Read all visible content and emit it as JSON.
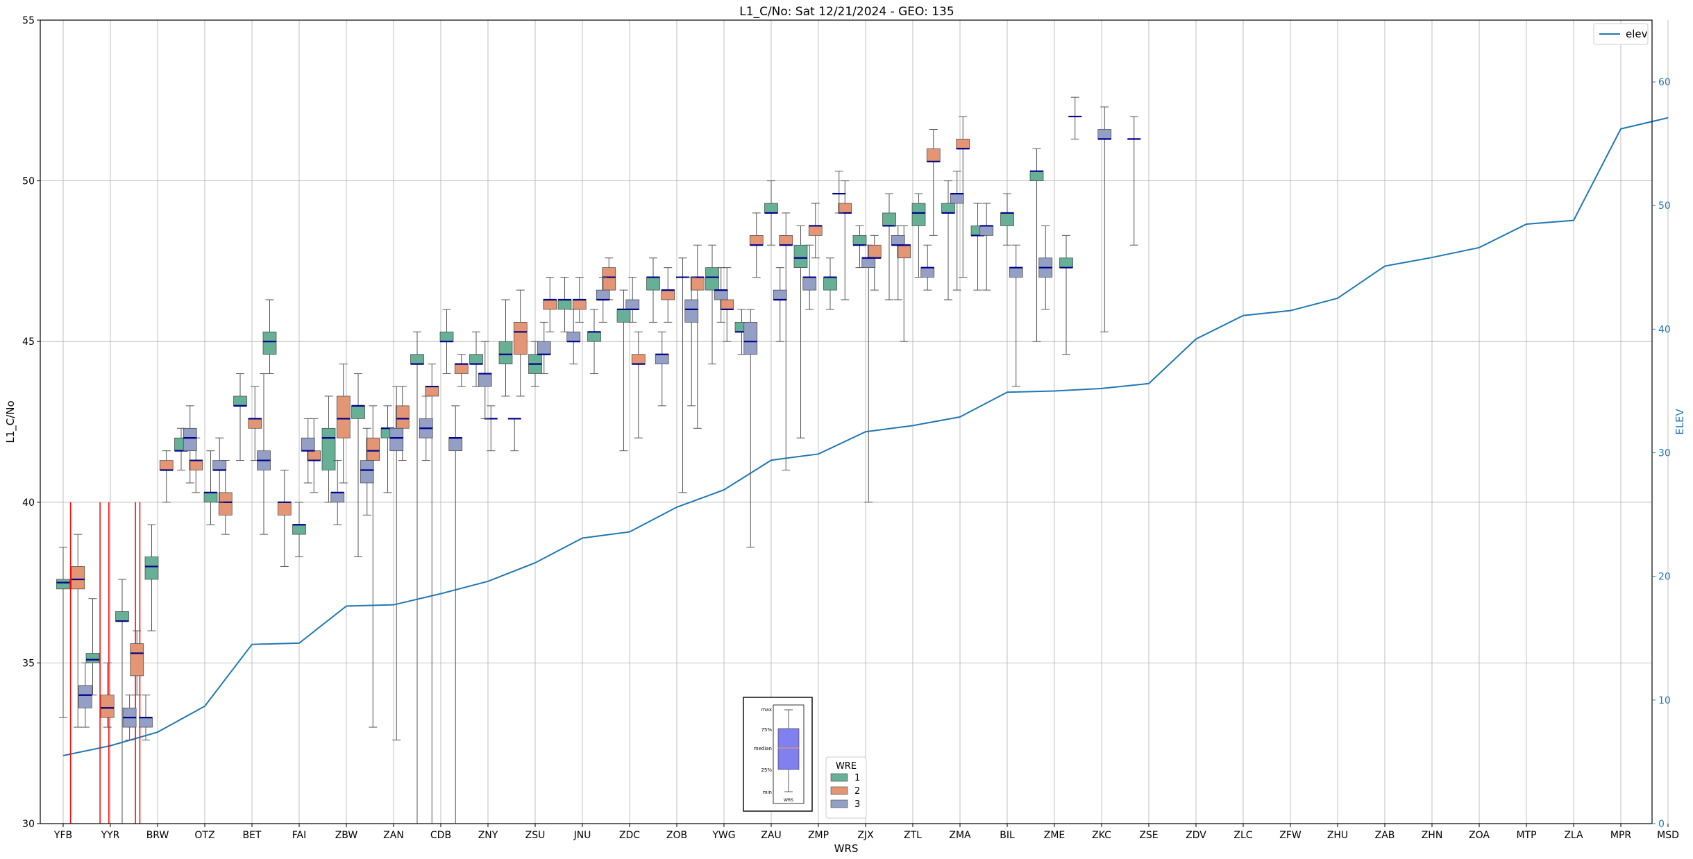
{
  "chart_data": {
    "type": "box",
    "title": "L1_C/No: Sat 12/21/2024 - GEO: 135",
    "xlabel": "WRS",
    "ylabel": "L1_C/No",
    "y2label": "ELEV",
    "ylim": [
      30,
      55
    ],
    "y2lim": [
      0,
      65
    ],
    "yticks": [
      30,
      35,
      40,
      45,
      50,
      55
    ],
    "y2ticks": [
      0,
      10,
      20,
      30,
      40,
      50,
      60
    ],
    "grid": true,
    "categories": [
      "YFB",
      "YYR",
      "BRW",
      "OTZ",
      "BET",
      "FAI",
      "ZBW",
      "ZAN",
      "CDB",
      "ZNY",
      "ZSU",
      "JNU",
      "ZDC",
      "ZOB",
      "YWG",
      "ZAU",
      "ZMP",
      "ZJX",
      "ZTL",
      "ZMA",
      "BIL",
      "ZME",
      "ZKC",
      "ZSE",
      "ZDV",
      "ZLC",
      "ZFW",
      "ZHU",
      "ZAB",
      "ZHN",
      "ZOA",
      "MTP",
      "ZLA",
      "MPR",
      "MSD"
    ],
    "wre_legend": {
      "title": "WRE",
      "labels": [
        "1",
        "2",
        "3"
      ],
      "placement": "lower-center"
    },
    "colors": {
      "wre1": "#66b096",
      "wre2": "#e49574",
      "wre3": "#939fc5",
      "elev": "#1f77b4",
      "median": "#00008b",
      "whisker": "#555555",
      "outlier_whisker": "#ff0000"
    },
    "elev_series": {
      "name": "elev",
      "legend_placement": "top-right",
      "values": [
        5.5,
        6.3,
        7.4,
        9.5,
        14.5,
        14.6,
        17.6,
        17.7,
        18.6,
        19.6,
        21.1,
        23.1,
        23.6,
        25.6,
        27.0,
        29.4,
        29.9,
        31.7,
        32.2,
        32.9,
        34.9,
        35.0,
        35.2,
        35.6,
        39.2,
        41.1,
        41.5,
        42.5,
        45.1,
        45.8,
        46.6,
        48.5,
        48.8,
        56.2,
        57.1
      ]
    },
    "series": [
      {
        "name": "1",
        "boxes": [
          [
            0,
            33.3,
            37.3,
            37.5,
            37.6,
            38.6
          ],
          [
            2,
            34.0,
            35.0,
            35.1,
            35.3,
            37.0
          ],
          [
            4,
            30.0,
            36.3,
            36.3,
            36.6,
            37.6
          ],
          [
            6,
            36.0,
            37.6,
            38.0,
            38.3,
            39.3
          ],
          [
            8,
            41.0,
            41.6,
            41.6,
            42.0,
            42.3
          ],
          [
            10,
            39.3,
            40.0,
            40.3,
            40.3,
            41.6
          ],
          [
            12,
            41.3,
            43.0,
            43.0,
            43.3,
            44.0
          ],
          [
            14,
            44.0,
            44.6,
            45.0,
            45.3,
            46.3
          ],
          [
            16,
            38.3,
            39.0,
            39.3,
            39.3,
            40.0
          ],
          [
            18,
            40.0,
            41.0,
            42.0,
            42.3,
            43.3
          ],
          [
            20,
            38.3,
            42.6,
            43.0,
            43.0,
            44.0
          ],
          [
            22,
            40.3,
            42.0,
            42.3,
            42.3,
            43.0
          ],
          [
            24,
            30.0,
            44.3,
            44.3,
            44.6,
            45.3
          ],
          [
            26,
            44.0,
            45.0,
            45.0,
            45.3,
            46.0
          ],
          [
            28,
            43.6,
            44.3,
            44.3,
            44.6,
            45.3
          ],
          [
            30,
            43.3,
            44.3,
            44.6,
            45.0,
            46.3
          ],
          [
            32,
            43.6,
            44.0,
            44.3,
            44.6,
            45.0
          ],
          [
            34,
            45.3,
            46.0,
            46.3,
            46.3,
            47.0
          ],
          [
            36,
            44.0,
            45.0,
            45.3,
            45.3,
            46.0
          ],
          [
            38,
            41.6,
            45.6,
            46.0,
            46.0,
            46.6
          ],
          [
            40,
            45.6,
            46.6,
            47.0,
            47.0,
            47.6
          ],
          [
            42,
            40.3,
            47.0,
            47.0,
            47.0,
            47.6
          ],
          [
            44,
            44.3,
            46.6,
            47.0,
            47.3,
            48.0
          ],
          [
            46,
            44.6,
            45.3,
            45.3,
            45.6,
            46.0
          ],
          [
            48,
            48.0,
            49.0,
            49.0,
            49.3,
            50.0
          ],
          [
            50,
            42.0,
            47.3,
            47.6,
            48.0,
            48.6
          ],
          [
            52,
            46.0,
            46.6,
            47.0,
            47.0,
            47.6
          ],
          [
            54,
            47.3,
            48.0,
            48.0,
            48.3,
            48.6
          ],
          [
            56,
            46.3,
            48.6,
            48.6,
            49.0,
            49.6
          ],
          [
            58,
            47.0,
            48.6,
            49.0,
            49.3,
            49.6
          ],
          [
            60,
            46.3,
            49.0,
            49.0,
            49.3,
            50.0
          ],
          [
            62,
            46.6,
            48.3,
            48.3,
            48.6,
            49.3
          ],
          [
            64,
            48.0,
            48.6,
            49.0,
            49.0,
            49.6
          ],
          [
            66,
            45.0,
            50.0,
            50.3,
            50.3,
            51.0
          ],
          [
            68,
            44.6,
            47.3,
            47.3,
            47.6,
            48.3
          ]
        ]
      },
      {
        "name": "2",
        "boxes": [
          [
            1,
            33.0,
            37.3,
            37.6,
            38.0,
            39.0
          ],
          [
            3,
            33.0,
            33.3,
            33.6,
            34.0,
            35.0
          ],
          [
            5,
            34.0,
            34.6,
            35.3,
            35.6,
            36.0
          ],
          [
            7,
            40.0,
            41.0,
            41.0,
            41.3,
            41.6
          ],
          [
            9,
            40.3,
            41.0,
            41.3,
            41.3,
            42.0
          ],
          [
            11,
            39.0,
            39.6,
            40.0,
            40.3,
            41.3
          ],
          [
            13,
            41.3,
            42.3,
            42.6,
            42.6,
            43.6
          ],
          [
            15,
            38.0,
            39.6,
            40.0,
            40.0,
            41.0
          ],
          [
            17,
            40.3,
            41.3,
            41.3,
            41.6,
            42.6
          ],
          [
            19,
            40.6,
            42.0,
            42.6,
            43.3,
            44.3
          ],
          [
            21,
            33.0,
            41.3,
            41.6,
            42.0,
            43.0
          ],
          [
            23,
            41.3,
            42.3,
            42.6,
            43.0,
            43.6
          ],
          [
            25,
            30.0,
            43.3,
            43.6,
            43.6,
            44.3
          ],
          [
            27,
            43.6,
            44.0,
            44.3,
            44.3,
            44.6
          ],
          [
            29,
            41.6,
            42.6,
            42.6,
            42.6,
            43.0
          ],
          [
            31,
            43.3,
            44.6,
            45.3,
            45.6,
            46.6
          ],
          [
            33,
            45.3,
            46.0,
            46.3,
            46.3,
            47.0
          ],
          [
            35,
            45.6,
            46.0,
            46.3,
            46.3,
            47.0
          ],
          [
            37,
            46.3,
            46.6,
            47.0,
            47.3,
            47.6
          ],
          [
            39,
            42.0,
            44.3,
            44.3,
            44.6,
            45.3
          ],
          [
            41,
            45.6,
            46.3,
            46.6,
            46.6,
            47.3
          ],
          [
            43,
            42.3,
            46.6,
            47.0,
            47.0,
            48.0
          ],
          [
            45,
            45.0,
            46.0,
            46.0,
            46.3,
            47.3
          ],
          [
            47,
            47.0,
            48.0,
            48.0,
            48.3,
            49.0
          ],
          [
            49,
            41.0,
            48.0,
            48.0,
            48.3,
            49.0
          ],
          [
            51,
            47.6,
            48.3,
            48.6,
            48.6,
            49.3
          ],
          [
            53,
            46.3,
            49.0,
            49.0,
            49.3,
            50.0
          ],
          [
            55,
            46.6,
            47.6,
            47.6,
            48.0,
            48.3
          ],
          [
            57,
            45.0,
            47.6,
            48.0,
            48.0,
            48.6
          ],
          [
            59,
            48.3,
            50.6,
            50.6,
            51.0,
            51.6
          ],
          [
            61,
            47.0,
            51.0,
            51.0,
            51.3,
            52.0
          ]
        ]
      },
      {
        "name": "3",
        "boxes": [
          [
            1.5,
            33.0,
            33.6,
            34.0,
            34.3,
            35.0
          ],
          [
            4.5,
            32.6,
            33.0,
            33.3,
            33.6,
            34.0
          ],
          [
            5.6,
            32.6,
            33.0,
            33.3,
            33.3,
            34.0
          ],
          [
            8.6,
            40.6,
            41.6,
            42.0,
            42.3,
            43.0
          ],
          [
            10.6,
            40.0,
            41.0,
            41.0,
            41.3,
            42.0
          ],
          [
            13.6,
            39.0,
            41.0,
            41.3,
            41.6,
            44.0
          ],
          [
            16.6,
            40.6,
            41.6,
            41.6,
            42.0,
            42.6
          ],
          [
            18.6,
            39.3,
            40.0,
            40.3,
            40.3,
            41.3
          ],
          [
            20.6,
            39.6,
            40.6,
            41.0,
            41.3,
            42.3
          ],
          [
            22.6,
            32.6,
            41.6,
            42.0,
            42.3,
            43.6
          ],
          [
            24.6,
            41.3,
            42.0,
            42.3,
            42.6,
            43.3
          ],
          [
            26.6,
            30.0,
            41.6,
            42.0,
            42.0,
            43.0
          ],
          [
            28.6,
            42.6,
            43.6,
            44.0,
            44.0,
            45.0
          ],
          [
            30.6,
            41.6,
            42.6,
            42.6,
            42.6,
            42.6
          ],
          [
            32.6,
            44.0,
            44.6,
            44.6,
            45.0,
            45.6
          ],
          [
            34.6,
            44.3,
            45.0,
            45.0,
            45.3,
            46.0
          ],
          [
            36.6,
            45.6,
            46.3,
            46.3,
            46.6,
            47.0
          ],
          [
            38.6,
            45.6,
            46.0,
            46.0,
            46.3,
            47.0
          ],
          [
            40.6,
            43.0,
            44.3,
            44.6,
            44.6,
            45.3
          ],
          [
            42.6,
            43.0,
            45.6,
            46.0,
            46.3,
            47.0
          ],
          [
            44.6,
            45.6,
            46.3,
            46.6,
            46.6,
            47.3
          ],
          [
            46.6,
            38.6,
            44.6,
            45.0,
            45.6,
            46.0
          ],
          [
            48.6,
            45.0,
            46.3,
            46.3,
            46.6,
            47.3
          ],
          [
            50.6,
            46.0,
            46.6,
            47.0,
            47.0,
            48.0
          ],
          [
            52.6,
            49.0,
            49.6,
            49.6,
            49.6,
            50.3
          ],
          [
            54.6,
            40.0,
            47.3,
            47.6,
            47.6,
            48.0
          ],
          [
            56.6,
            46.3,
            48.0,
            48.0,
            48.3,
            48.6
          ],
          [
            58.6,
            46.6,
            47.0,
            47.3,
            47.3,
            48.0
          ],
          [
            60.6,
            46.6,
            49.3,
            49.6,
            49.6,
            50.3
          ],
          [
            62.6,
            46.6,
            48.3,
            48.6,
            48.6,
            49.3
          ],
          [
            64.6,
            43.6,
            47.0,
            47.3,
            47.3,
            48.0
          ],
          [
            66.6,
            46.0,
            47.0,
            47.3,
            47.6,
            48.6
          ],
          [
            68.6,
            51.3,
            52.0,
            52.0,
            52.0,
            52.6
          ],
          [
            70.6,
            45.3,
            51.3,
            51.3,
            51.6,
            52.3
          ],
          [
            72.6,
            48.0,
            51.3,
            51.3,
            51.3,
            52.0
          ]
        ]
      }
    ],
    "outlier_whiskers": [
      0.5,
      2.5,
      3.1,
      4.9,
      5.2
    ],
    "inset": {
      "labels": [
        "max",
        "75%",
        "median",
        "25%",
        "min"
      ],
      "xlabel": "WRS",
      "colors": {
        "box": "#8080ee",
        "median": "#e49574"
      }
    }
  }
}
